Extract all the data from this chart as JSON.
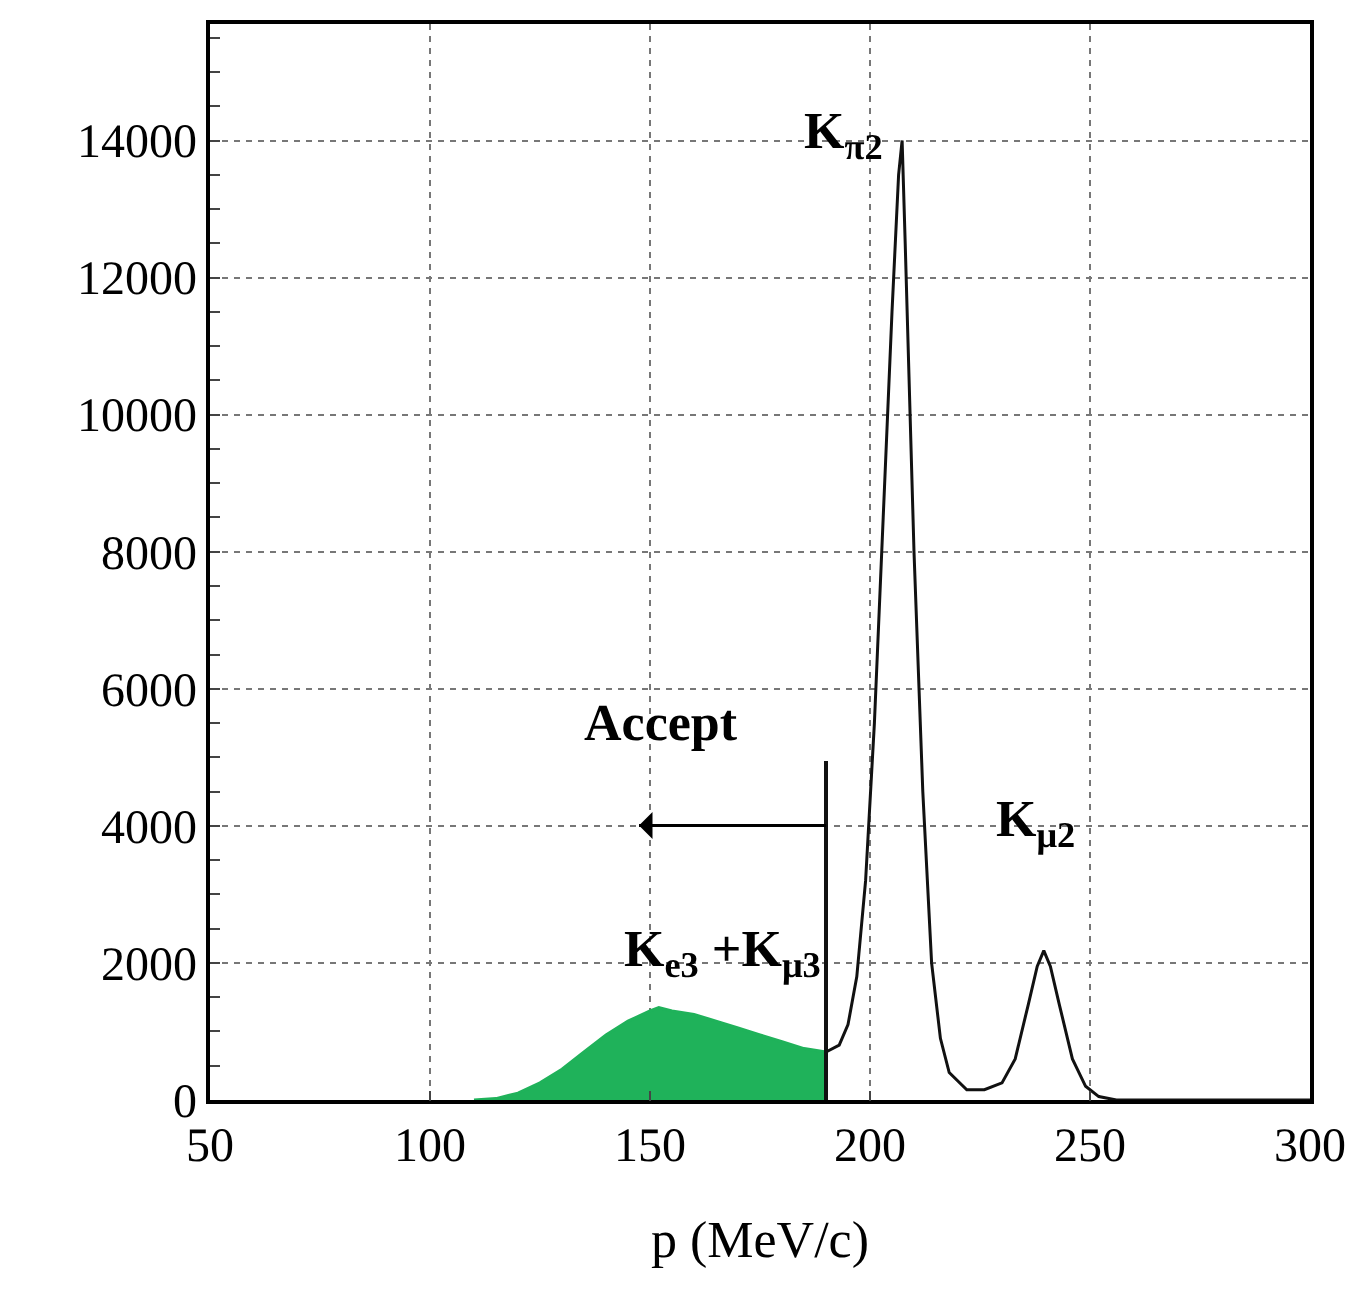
{
  "chart_data": {
    "type": "line",
    "xlabel": "p (MeV/c)",
    "xlim": [
      50,
      300
    ],
    "xticks": [
      50,
      100,
      150,
      200,
      250,
      300
    ],
    "ylim": [
      0,
      15700
    ],
    "yticks": [
      0,
      2000,
      4000,
      6000,
      8000,
      10000,
      12000,
      14000
    ],
    "grid": true,
    "marker": "none",
    "line_style": "solid",
    "series": [
      {
        "type": "area",
        "color": "#1fb25a",
        "x": [
          110,
          115,
          120,
          125,
          130,
          135,
          140,
          145,
          150,
          152,
          155,
          160,
          165,
          170,
          175,
          180,
          185,
          190
        ],
        "values": [
          0,
          20,
          100,
          250,
          450,
          700,
          950,
          1150,
          1300,
          1350,
          1300,
          1250,
          1150,
          1050,
          950,
          850,
          750,
          700
        ]
      },
      {
        "color": "#111111",
        "x": [
          190,
          193,
          195,
          197,
          199,
          201,
          203,
          205,
          206.5,
          207.3,
          208,
          210,
          212,
          214,
          216,
          218,
          222,
          226,
          230,
          233,
          236,
          238,
          239.5,
          241,
          243,
          246,
          249,
          252,
          256,
          300
        ],
        "values": [
          700,
          800,
          1100,
          1800,
          3200,
          5500,
          8500,
          11500,
          13500,
          14000,
          12500,
          8000,
          4500,
          2000,
          900,
          400,
          150,
          150,
          250,
          600,
          1400,
          1950,
          2180,
          1950,
          1400,
          600,
          200,
          50,
          0,
          0
        ]
      }
    ],
    "ref_lines": [
      {
        "axis": "x",
        "value": 190,
        "color": "#111111"
      }
    ],
    "annotations": [
      "Accept",
      "K$_{π2}$",
      "K$_{μ2}$",
      "K$_{e3}$ +K$_{μ3}$"
    ]
  }
}
